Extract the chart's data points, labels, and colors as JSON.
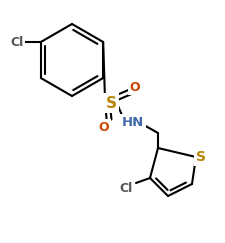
{
  "background_color": "#ffffff",
  "bond_color": "#000000",
  "line_width": 1.5,
  "S_sulfonyl_color": "#b8860b",
  "S_thiophene_color": "#b8860b",
  "N_color": "#4169aa",
  "Cl_color": "#555555",
  "O_color": "#cc4400",
  "figsize": [
    2.25,
    2.43
  ],
  "dpi": 100,
  "xlim": [
    0,
    225
  ],
  "ylim": [
    243,
    0
  ]
}
